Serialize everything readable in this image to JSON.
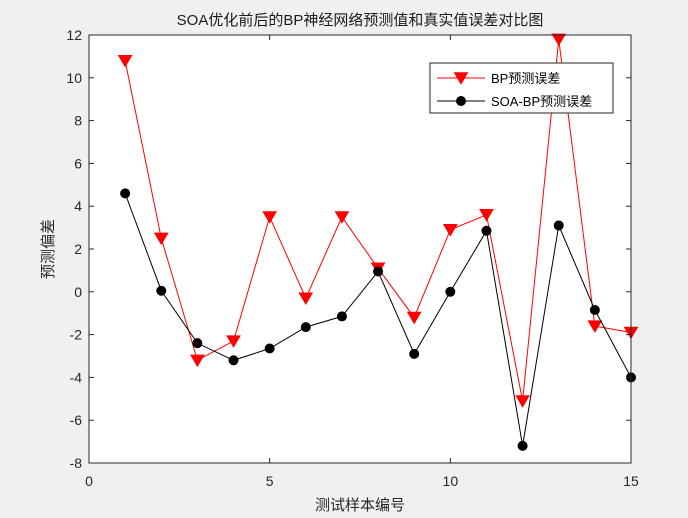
{
  "chart_data": {
    "type": "line",
    "title": "SOA优化前后的BP神经网络预测值和真实值误差对比图",
    "xlabel": "测试样本编号",
    "ylabel": "预测偏差",
    "xlim": [
      0,
      15
    ],
    "ylim": [
      -8,
      12
    ],
    "xticks": [
      0,
      5,
      10,
      15
    ],
    "yticks": [
      -8,
      -6,
      -4,
      -2,
      0,
      2,
      4,
      6,
      8,
      10,
      12
    ],
    "grid": false,
    "legend_location": "top-right",
    "x": [
      1,
      2,
      3,
      4,
      5,
      6,
      7,
      8,
      9,
      10,
      11,
      12,
      13,
      14,
      15
    ],
    "series": [
      {
        "name": "BP预测误差",
        "color": "#ff0000",
        "marker": "triangle-down",
        "values": [
          10.8,
          2.5,
          -3.2,
          -2.3,
          3.5,
          -0.3,
          3.5,
          1.1,
          -1.2,
          2.9,
          3.6,
          -5.1,
          11.8,
          -1.6,
          -1.9
        ]
      },
      {
        "name": "SOA-BP预测误差",
        "color": "#000000",
        "marker": "circle",
        "values": [
          4.6,
          0.05,
          -2.4,
          -3.2,
          -2.65,
          -1.65,
          -1.15,
          0.95,
          -2.9,
          0.0,
          2.85,
          -7.2,
          3.1,
          -0.85,
          -4.0
        ]
      }
    ]
  }
}
